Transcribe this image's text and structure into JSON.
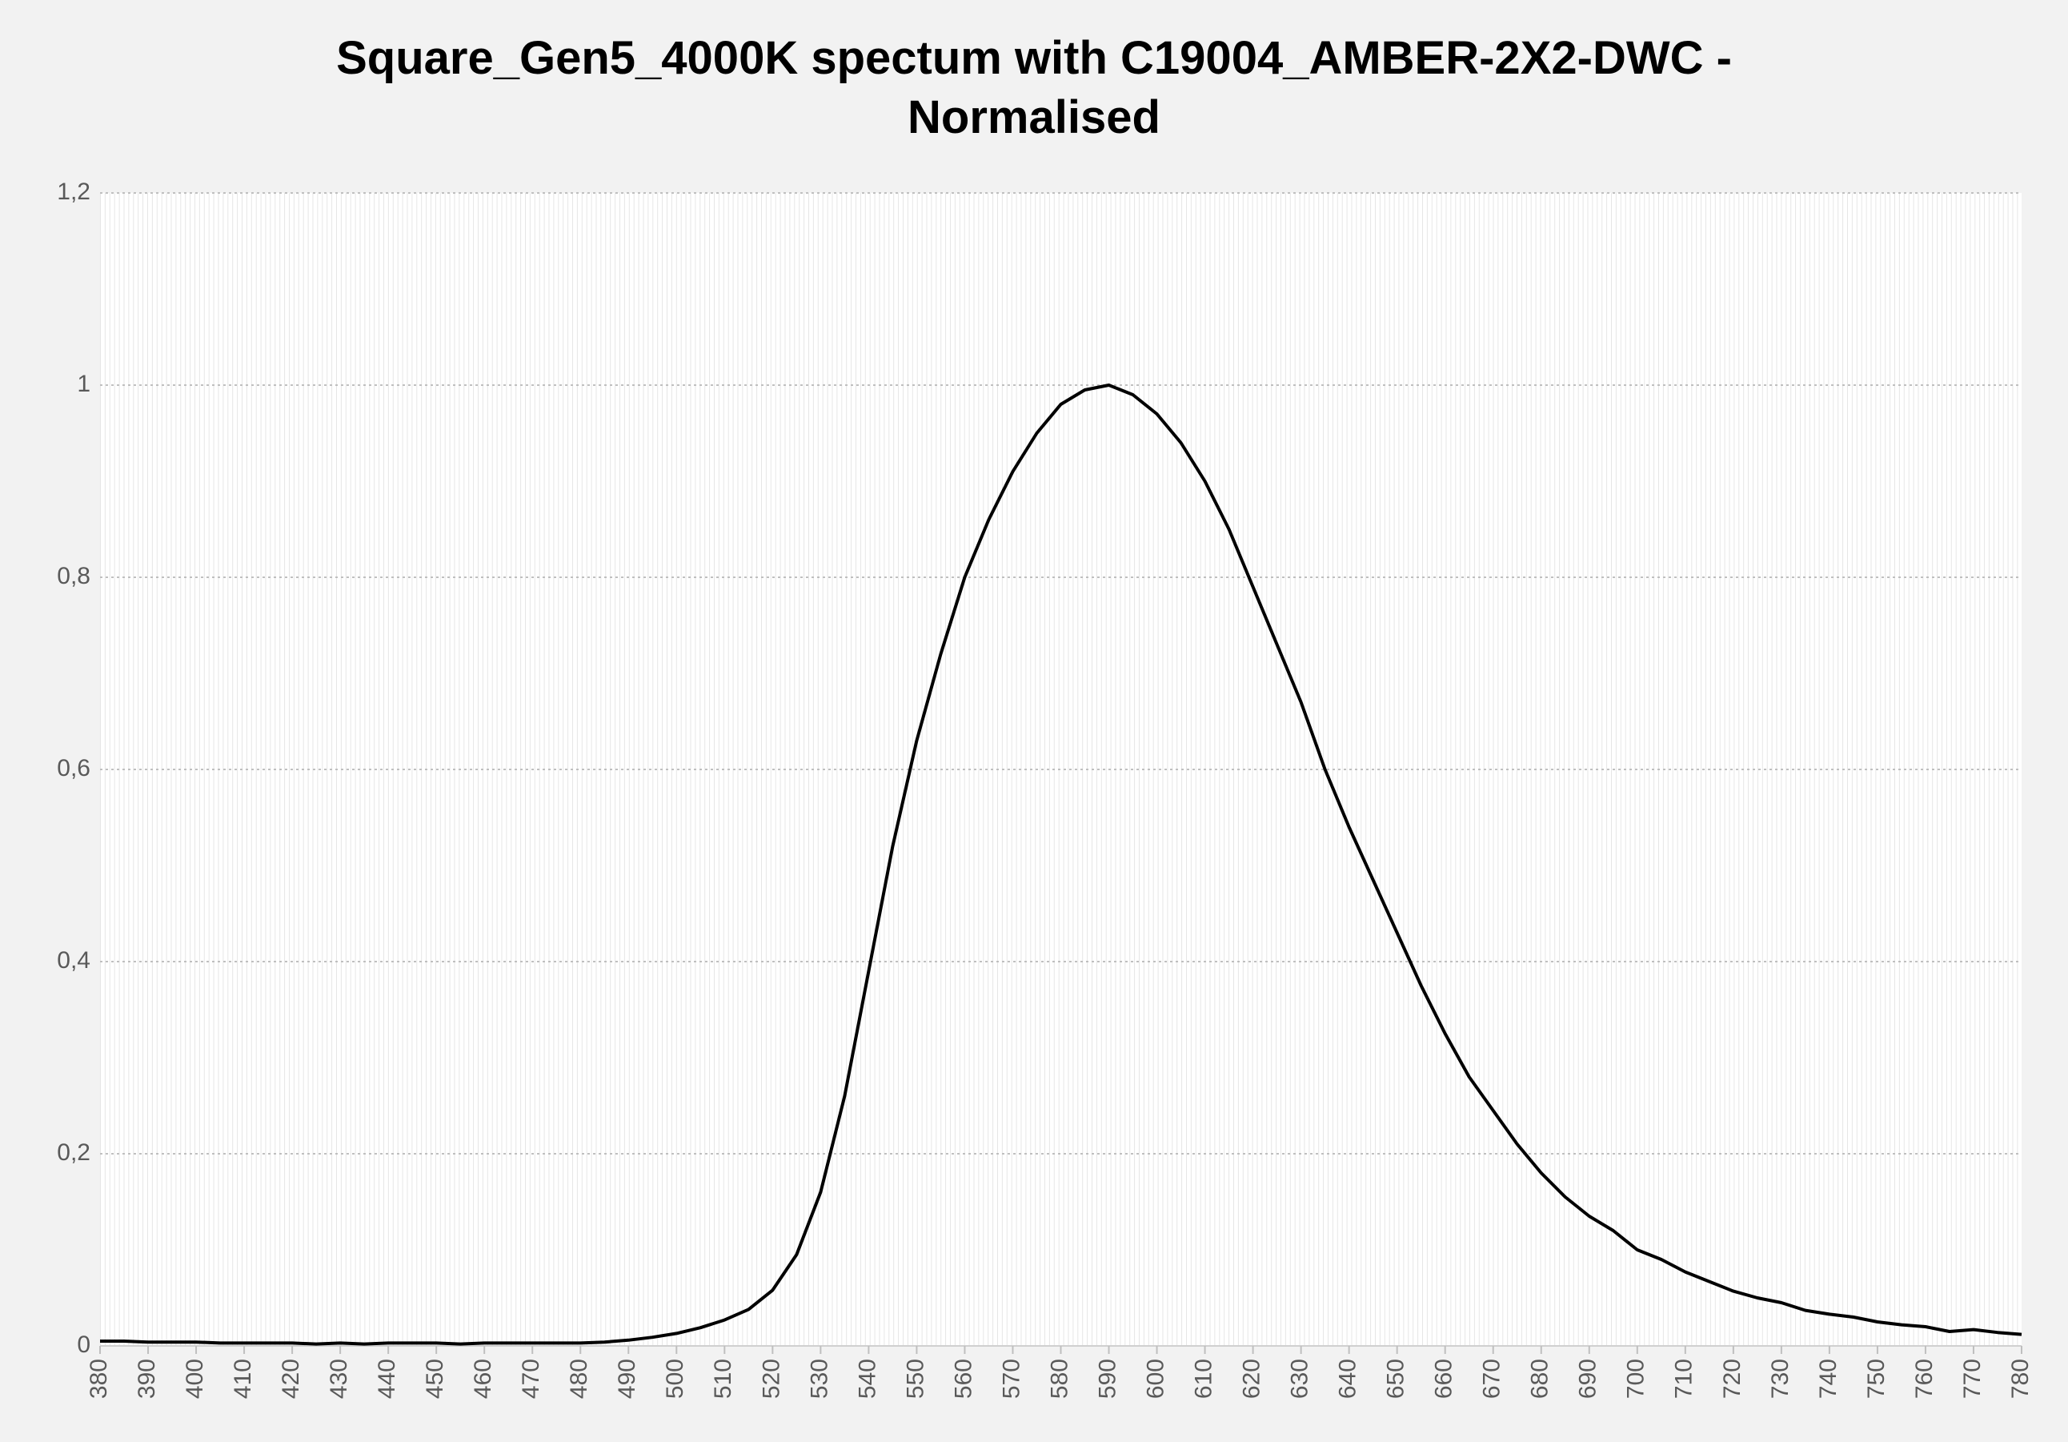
{
  "chart_data": {
    "type": "line",
    "title": "Square_Gen5_4000K spectum with C19004_AMBER-2X2-DWC - Normalised",
    "x": [
      380,
      385,
      390,
      395,
      400,
      405,
      410,
      415,
      420,
      425,
      430,
      435,
      440,
      445,
      450,
      455,
      460,
      465,
      470,
      475,
      480,
      485,
      490,
      495,
      500,
      505,
      510,
      515,
      520,
      525,
      530,
      535,
      540,
      545,
      550,
      555,
      560,
      565,
      570,
      575,
      580,
      585,
      590,
      595,
      600,
      605,
      610,
      615,
      620,
      625,
      630,
      635,
      640,
      645,
      650,
      655,
      660,
      665,
      670,
      675,
      680,
      685,
      690,
      695,
      700,
      705,
      710,
      715,
      720,
      725,
      730,
      735,
      740,
      745,
      750,
      755,
      760,
      765,
      770,
      775,
      780
    ],
    "series": [
      {
        "color": "#000000",
        "values": [
          0.005,
          0.005,
          0.004,
          0.004,
          0.004,
          0.003,
          0.003,
          0.003,
          0.003,
          0.002,
          0.003,
          0.002,
          0.003,
          0.003,
          0.003,
          0.002,
          0.003,
          0.003,
          0.003,
          0.003,
          0.003,
          0.004,
          0.006,
          0.009,
          0.013,
          0.019,
          0.027,
          0.038,
          0.058,
          0.095,
          0.16,
          0.26,
          0.39,
          0.52,
          0.63,
          0.72,
          0.8,
          0.86,
          0.91,
          0.95,
          0.98,
          0.995,
          1.0,
          0.99,
          0.97,
          0.94,
          0.9,
          0.85,
          0.79,
          0.73,
          0.67,
          0.6,
          0.54,
          0.485,
          0.43,
          0.375,
          0.325,
          0.28,
          0.245,
          0.21,
          0.18,
          0.155,
          0.135,
          0.12,
          0.1,
          0.09,
          0.077,
          0.067,
          0.057,
          0.05,
          0.045,
          0.037,
          0.033,
          0.03,
          0.025,
          0.022,
          0.02,
          0.015,
          0.017,
          0.014,
          0.012
        ]
      }
    ],
    "xlim": [
      380,
      780
    ],
    "xticks": [
      380,
      390,
      400,
      410,
      420,
      430,
      440,
      450,
      460,
      470,
      480,
      490,
      500,
      510,
      520,
      530,
      540,
      550,
      560,
      570,
      580,
      590,
      600,
      610,
      620,
      630,
      640,
      650,
      660,
      670,
      680,
      690,
      700,
      710,
      720,
      730,
      740,
      750,
      760,
      770,
      780
    ],
    "ylim": [
      0,
      1.2
    ],
    "yticks": [
      0,
      {
        "value": 0.2,
        "label": "0,2"
      },
      {
        "value": 0.4,
        "label": "0,4"
      },
      {
        "value": 0.6,
        "label": "0,6"
      },
      {
        "value": 0.8,
        "label": "0,8"
      },
      1,
      {
        "value": 1.2,
        "label": "1,2"
      }
    ],
    "grid": true
  }
}
